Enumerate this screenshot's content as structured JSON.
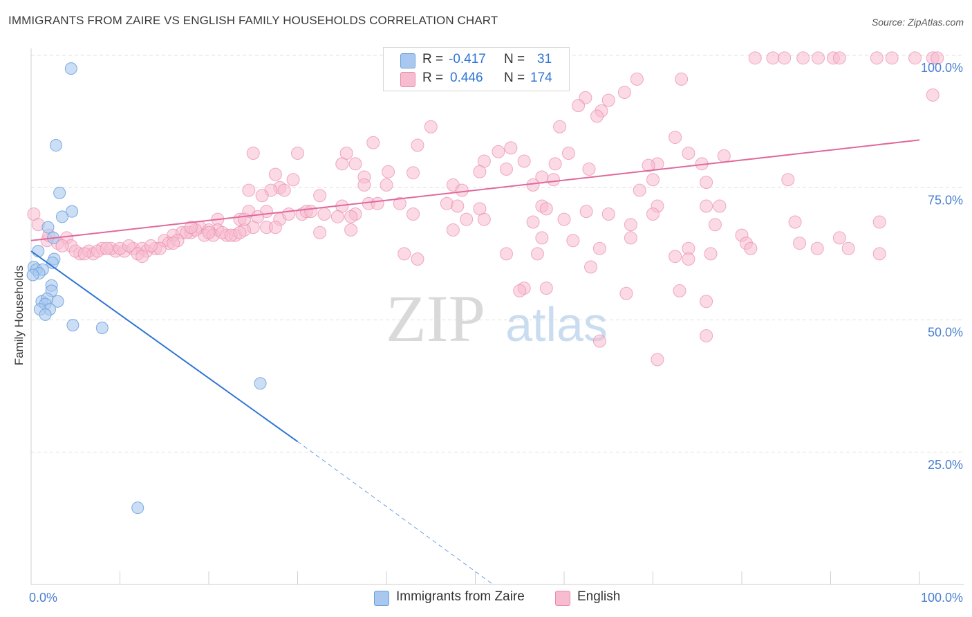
{
  "title": "IMMIGRANTS FROM ZAIRE VS ENGLISH FAMILY HOUSEHOLDS CORRELATION CHART",
  "source": "Source: ZipAtlas.com",
  "watermark": {
    "zip": "ZIP",
    "atlas": "atlas"
  },
  "legend": {
    "rows": [
      {
        "r_label": "R =",
        "r_value": "-0.417",
        "n_label": "N =",
        "n_value": "31",
        "color": "#a8c8f0",
        "border": "#6a9fd8"
      },
      {
        "r_label": "R =",
        "r_value": "0.446",
        "n_label": "N =",
        "n_value": "174",
        "color": "#f8bcd0",
        "border": "#e88aa8"
      }
    ]
  },
  "bottom_legend": [
    {
      "label": "Immigrants from Zaire",
      "color": "#a8c8f0",
      "border": "#6a9fd8"
    },
    {
      "label": "English",
      "color": "#f8bcd0",
      "border": "#e88aa8"
    }
  ],
  "chart_data": {
    "type": "scatter",
    "title": "IMMIGRANTS FROM ZAIRE VS ENGLISH FAMILY HOUSEHOLDS CORRELATION CHART",
    "xlabel": "",
    "ylabel": "Family Households",
    "xlim": [
      0,
      100
    ],
    "ylim": [
      0,
      102
    ],
    "x_tick_labels": [
      "0.0%",
      "100.0%"
    ],
    "y_ticks": [
      25,
      50,
      75,
      100
    ],
    "y_tick_labels": [
      "25.0%",
      "50.0%",
      "75.0%",
      "100.0%"
    ],
    "grid": true,
    "accent_blue": "#2e75d6",
    "accent_pink": "#e0699a",
    "series": [
      {
        "name": "Immigrants from Zaire",
        "color": "#a8c8f0",
        "stroke": "#6a9fd8",
        "points": [
          [
            4.5,
            97.5
          ],
          [
            2.8,
            83
          ],
          [
            3.2,
            74
          ],
          [
            4.6,
            70.5
          ],
          [
            3.5,
            69.5
          ],
          [
            1.9,
            67.5
          ],
          [
            2.5,
            65.5
          ],
          [
            0.8,
            63
          ],
          [
            2.6,
            61.5
          ],
          [
            2.4,
            60.8
          ],
          [
            0.3,
            60
          ],
          [
            0.6,
            59.5
          ],
          [
            1.3,
            59.5
          ],
          [
            0.9,
            58.8
          ],
          [
            0.2,
            58.5
          ],
          [
            2.3,
            56.5
          ],
          [
            2.3,
            55.5
          ],
          [
            3.0,
            53.5
          ],
          [
            1.2,
            53.5
          ],
          [
            1.8,
            54
          ],
          [
            1.6,
            53
          ],
          [
            2.1,
            52
          ],
          [
            1.0,
            52
          ],
          [
            1.6,
            51
          ],
          [
            4.7,
            49
          ],
          [
            8.0,
            48.5
          ],
          [
            25.8,
            38
          ],
          [
            12.0,
            14.5
          ]
        ]
      },
      {
        "name": "English",
        "color": "#f8bcd0",
        "stroke": "#e88aa8",
        "points": [
          [
            81.5,
            99.5
          ],
          [
            83.5,
            99.5
          ],
          [
            84.8,
            99.5
          ],
          [
            86.9,
            99.5
          ],
          [
            88.6,
            99.5
          ],
          [
            90.3,
            99.5
          ],
          [
            91.0,
            99.5
          ],
          [
            95.2,
            99.5
          ],
          [
            96.9,
            99.5
          ],
          [
            99.5,
            99.5
          ],
          [
            101.5,
            99.5
          ],
          [
            102.0,
            99.5
          ],
          [
            68.2,
            95.5
          ],
          [
            73.2,
            95.5
          ],
          [
            101.5,
            92.5
          ],
          [
            66.8,
            93
          ],
          [
            62.4,
            92
          ],
          [
            61.6,
            90.5
          ],
          [
            65.0,
            91.5
          ],
          [
            64.2,
            89.5
          ],
          [
            63.7,
            88.5
          ],
          [
            59.5,
            86.5
          ],
          [
            45.0,
            86.5
          ],
          [
            72.5,
            84.5
          ],
          [
            38.5,
            83.5
          ],
          [
            43.5,
            83
          ],
          [
            54.0,
            82.5
          ],
          [
            74.0,
            81.5
          ],
          [
            78.0,
            81
          ],
          [
            60.5,
            81.5
          ],
          [
            30.0,
            81.5
          ],
          [
            35.5,
            81.5
          ],
          [
            52.6,
            81.8
          ],
          [
            51.0,
            80
          ],
          [
            25.0,
            81.5
          ],
          [
            55.5,
            80
          ],
          [
            70.5,
            79.5
          ],
          [
            75.5,
            79.5
          ],
          [
            35.0,
            79.5
          ],
          [
            36.5,
            79.5
          ],
          [
            59.0,
            79.5
          ],
          [
            69.5,
            79.2
          ],
          [
            53.5,
            78.5
          ],
          [
            62.8,
            78.5
          ],
          [
            50.5,
            78
          ],
          [
            40.2,
            78
          ],
          [
            43.0,
            77.8
          ],
          [
            27.5,
            77.5
          ],
          [
            29.5,
            76.5
          ],
          [
            37.5,
            77
          ],
          [
            57.5,
            77
          ],
          [
            58.8,
            76.5
          ],
          [
            70.0,
            76.5
          ],
          [
            85.2,
            76.5
          ],
          [
            76.0,
            76
          ],
          [
            40.0,
            75.5
          ],
          [
            56.5,
            75.5
          ],
          [
            37.5,
            75.5
          ],
          [
            47.5,
            75.5
          ],
          [
            24.5,
            74.5
          ],
          [
            28.0,
            75
          ],
          [
            27.0,
            74.5
          ],
          [
            28.5,
            74.5
          ],
          [
            48.5,
            74.5
          ],
          [
            68.5,
            74.5
          ],
          [
            26.0,
            73.5
          ],
          [
            32.5,
            73.5
          ],
          [
            41.5,
            72
          ],
          [
            46.8,
            72
          ],
          [
            35.0,
            71.5
          ],
          [
            48.0,
            71.5
          ],
          [
            57.5,
            71.5
          ],
          [
            70.5,
            71.5
          ],
          [
            76.0,
            71.5
          ],
          [
            77.5,
            71.5
          ],
          [
            50.5,
            71
          ],
          [
            58.0,
            71
          ],
          [
            62.5,
            70.5
          ],
          [
            24.5,
            70.5
          ],
          [
            26.5,
            70.5
          ],
          [
            36.5,
            70
          ],
          [
            43.0,
            70
          ],
          [
            65.0,
            70
          ],
          [
            70.0,
            70
          ],
          [
            36.0,
            69.5
          ],
          [
            23.5,
            69
          ],
          [
            21.0,
            69
          ],
          [
            28.0,
            69
          ],
          [
            49.0,
            69
          ],
          [
            60.0,
            69
          ],
          [
            51.0,
            69
          ],
          [
            56.5,
            68.5
          ],
          [
            86.0,
            68.5
          ],
          [
            67.5,
            68
          ],
          [
            77.0,
            68
          ],
          [
            25.0,
            67.5
          ],
          [
            36.0,
            67
          ],
          [
            47.5,
            67
          ],
          [
            21.0,
            67
          ],
          [
            32.5,
            66.5
          ],
          [
            57.5,
            65.5
          ],
          [
            67.5,
            65.5
          ],
          [
            80.0,
            66
          ],
          [
            61.0,
            65
          ],
          [
            80.5,
            64.5
          ],
          [
            86.5,
            64.5
          ],
          [
            95.5,
            68.5
          ],
          [
            91.0,
            65.5
          ],
          [
            74.0,
            63.5
          ],
          [
            64.0,
            63.5
          ],
          [
            53.5,
            62.5
          ],
          [
            57.0,
            62.5
          ],
          [
            42.0,
            62.5
          ],
          [
            43.5,
            61.5
          ],
          [
            95.5,
            62.5
          ],
          [
            74.0,
            61.5
          ],
          [
            63.0,
            60
          ],
          [
            72.5,
            62
          ],
          [
            76.5,
            62.5
          ],
          [
            55.5,
            56
          ],
          [
            58.0,
            56
          ],
          [
            55.0,
            55.5
          ],
          [
            73.0,
            55.5
          ],
          [
            67.0,
            55
          ],
          [
            76.0,
            53.5
          ],
          [
            64.0,
            46
          ],
          [
            76.0,
            47
          ],
          [
            70.5,
            42.5
          ],
          [
            81.0,
            63.5
          ],
          [
            88.5,
            63.5
          ],
          [
            92.0,
            63.5
          ],
          [
            0.3,
            70
          ],
          [
            0.8,
            68
          ],
          [
            1.8,
            65
          ],
          [
            4.0,
            65.5
          ],
          [
            4.5,
            64
          ],
          [
            5.5,
            62.5
          ],
          [
            6.5,
            63
          ],
          [
            7.0,
            62.5
          ],
          [
            8.0,
            63.5
          ],
          [
            9.5,
            63
          ],
          [
            10.5,
            63
          ],
          [
            11.5,
            63.5
          ],
          [
            12.5,
            63.5
          ],
          [
            13.0,
            63
          ],
          [
            14.0,
            63.5
          ],
          [
            15.0,
            65
          ],
          [
            16.0,
            66
          ],
          [
            17.0,
            66.5
          ],
          [
            18.0,
            66.5
          ],
          [
            19.0,
            67.5
          ],
          [
            20.0,
            67
          ],
          [
            22.0,
            66
          ],
          [
            23.0,
            66
          ],
          [
            24.0,
            67
          ],
          [
            15.5,
            64.5
          ],
          [
            16.5,
            65
          ],
          [
            19.5,
            66
          ],
          [
            9.0,
            63.5
          ],
          [
            10.0,
            63.5
          ],
          [
            12.0,
            62.5
          ],
          [
            14.5,
            63.5
          ],
          [
            3.0,
            64.5
          ],
          [
            3.5,
            64
          ],
          [
            2.0,
            66
          ],
          [
            5.0,
            63
          ],
          [
            7.5,
            63
          ],
          [
            11.0,
            64
          ],
          [
            13.5,
            64
          ],
          [
            17.5,
            66.5
          ],
          [
            18.5,
            67
          ],
          [
            20.5,
            66
          ],
          [
            21.5,
            66.5
          ],
          [
            22.5,
            66
          ],
          [
            23.5,
            66.5
          ],
          [
            26.5,
            67.5
          ],
          [
            27.5,
            67.5
          ],
          [
            29.0,
            70
          ],
          [
            30.5,
            70
          ],
          [
            33.0,
            70
          ],
          [
            34.5,
            69.5
          ],
          [
            38.0,
            72
          ],
          [
            39.0,
            72
          ],
          [
            31.0,
            70.5
          ],
          [
            31.5,
            70.5
          ],
          [
            24.0,
            69
          ],
          [
            25.5,
            69.5
          ],
          [
            12.5,
            62
          ],
          [
            6.0,
            62.5
          ],
          [
            8.5,
            63.5
          ],
          [
            16.0,
            64.5
          ],
          [
            18.0,
            67.5
          ],
          [
            20.0,
            66.5
          ]
        ]
      }
    ],
    "trend_lines": [
      {
        "series": "Immigrants from Zaire",
        "from": [
          0,
          63
        ],
        "to": [
          30,
          27
        ],
        "dashed_to": [
          52,
          0
        ]
      },
      {
        "series": "English",
        "from": [
          0,
          65
        ],
        "to": [
          100,
          84
        ]
      }
    ]
  }
}
